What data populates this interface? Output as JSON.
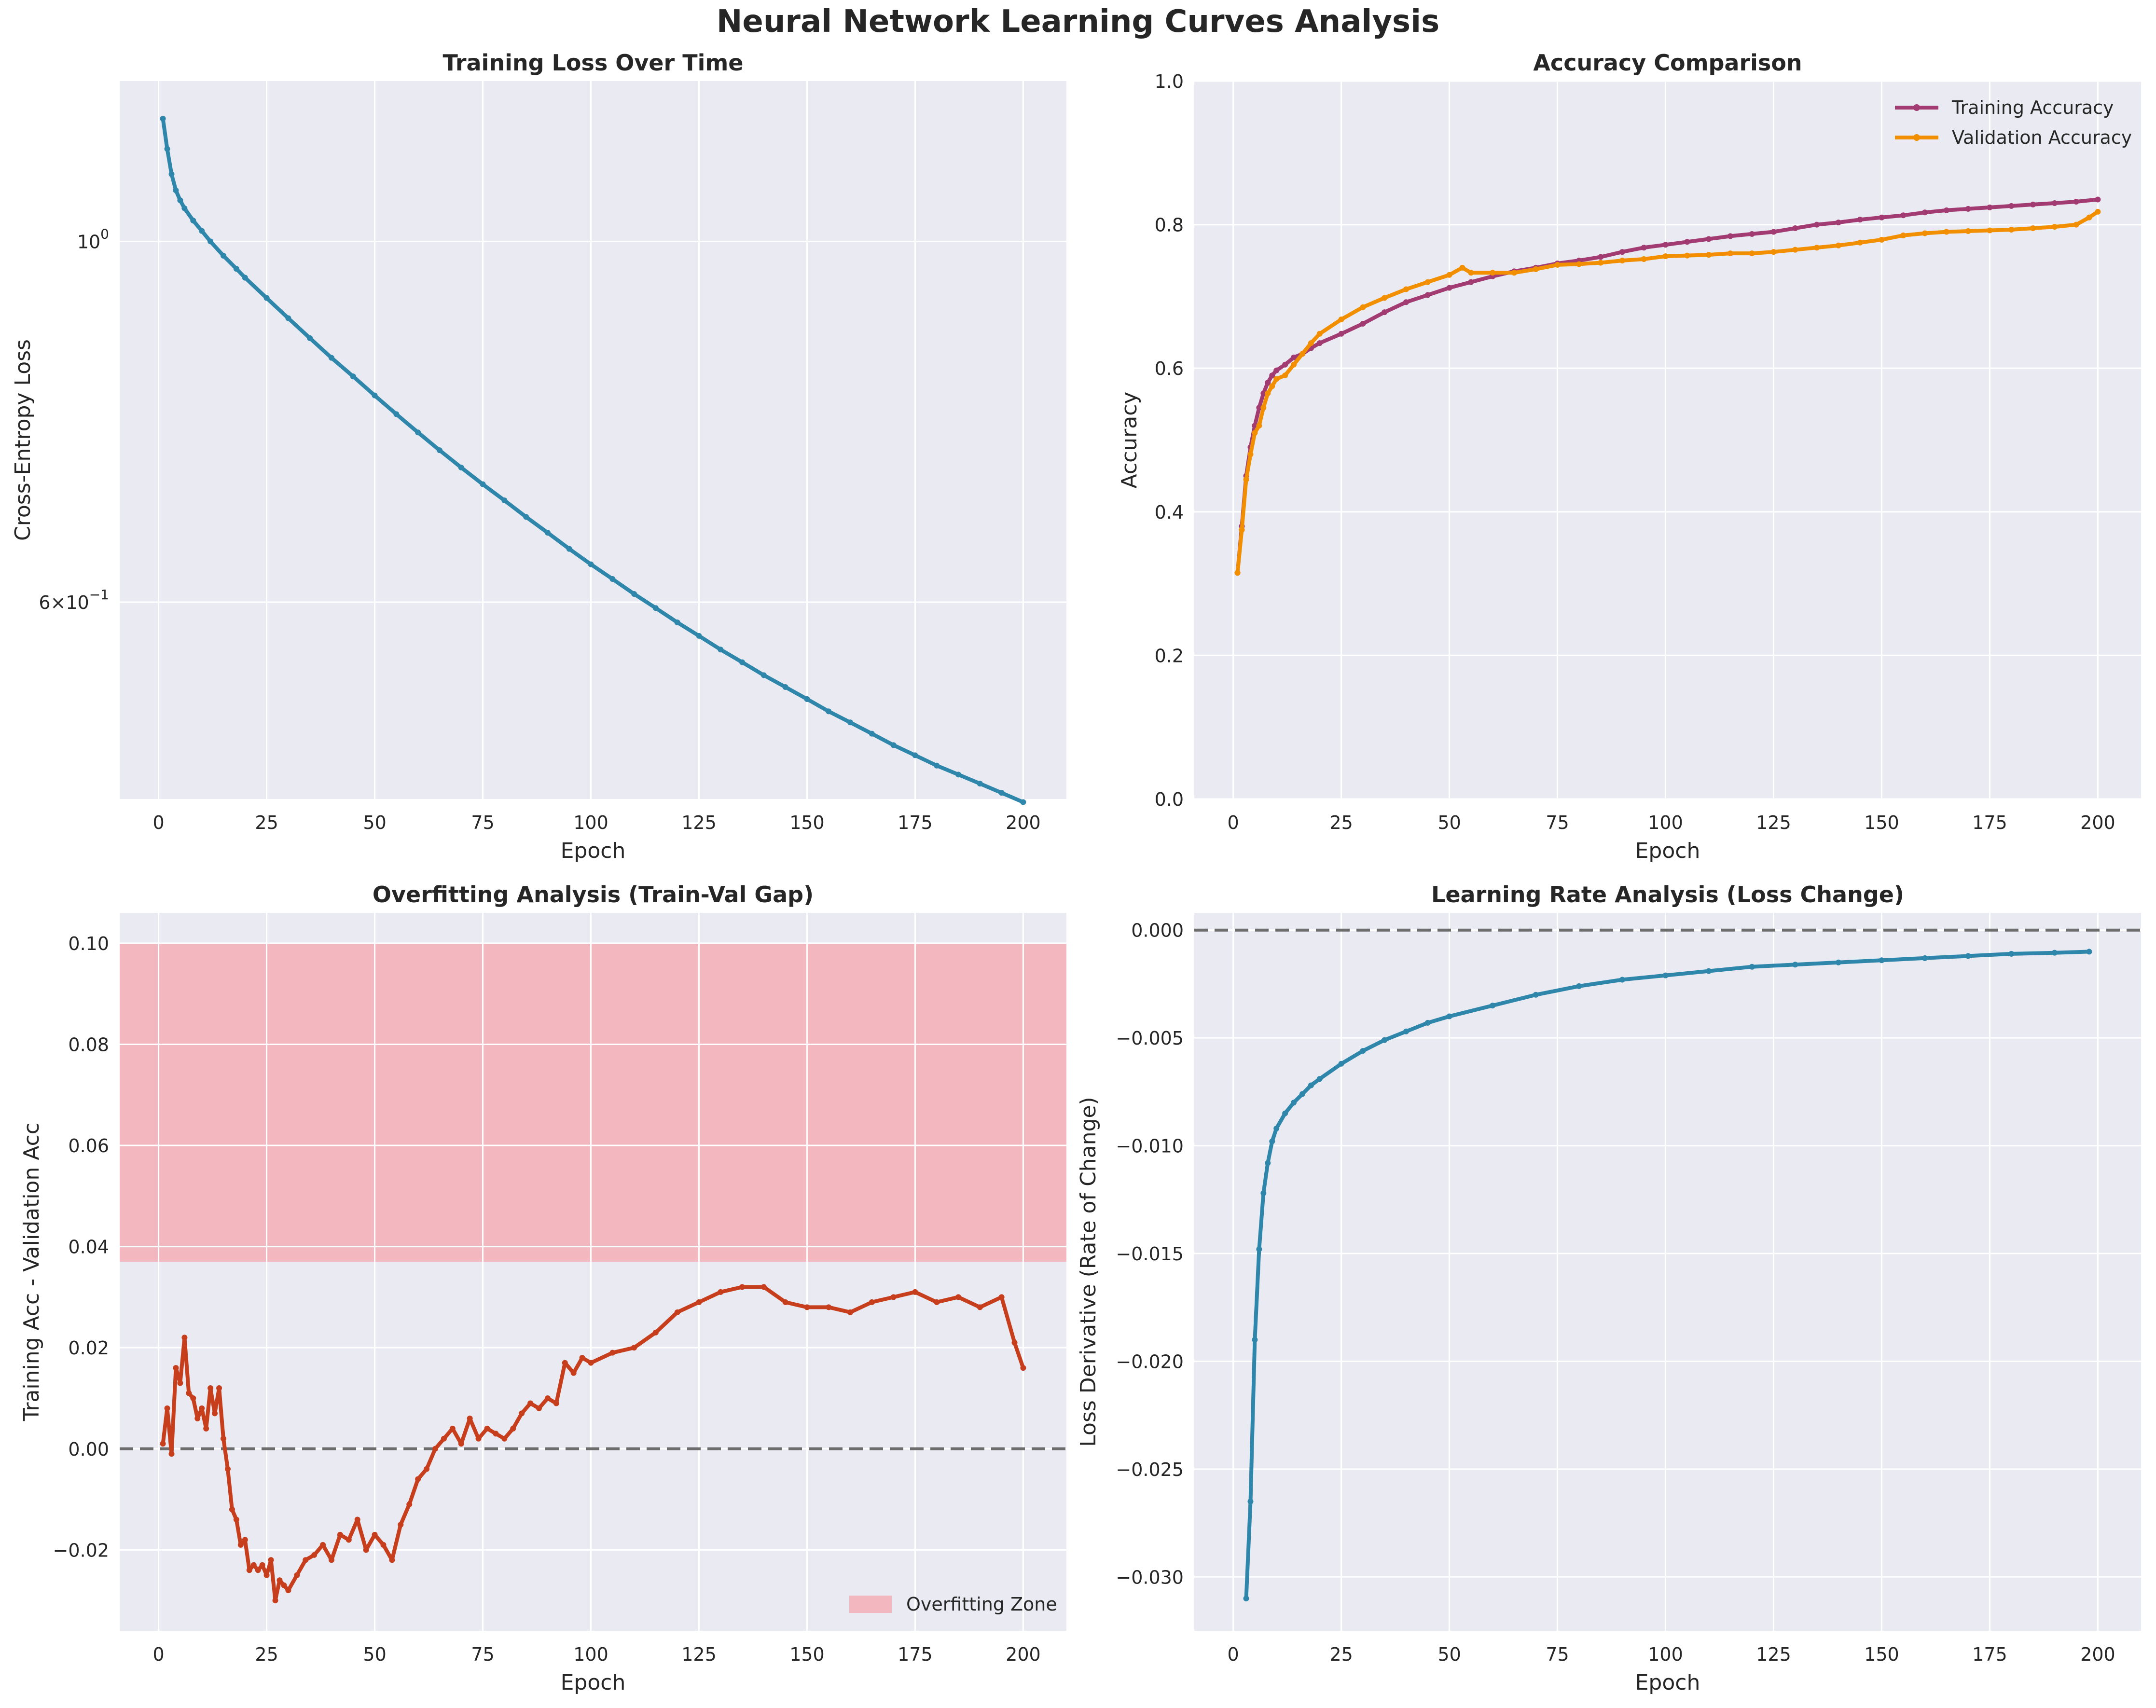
{
  "figure_title": "Neural Network Learning Curves Analysis",
  "colors": {
    "background": "#EAEAF2",
    "grid": "#FFFFFF",
    "loss": "#2E86AB",
    "train_acc": "#A23B72",
    "val_acc": "#F18F01",
    "gap": "#C73E1D",
    "zone": "#F4A6AE",
    "reference": "#555555"
  },
  "chart_data": [
    {
      "id": "loss",
      "type": "line",
      "title": "Training Loss Over Time",
      "xlabel": "Epoch",
      "ylabel": "Cross-Entropy Loss",
      "yscale": "log",
      "xlim": [
        -9,
        210
      ],
      "ylim": [
        0.454,
        1.255
      ],
      "xticks": [
        0,
        25,
        50,
        75,
        100,
        125,
        150,
        175,
        200
      ],
      "yticks": [
        {
          "value": 1.0,
          "label": "10^0"
        },
        {
          "value": 0.6,
          "label": "6×10^-1"
        }
      ],
      "grid": true,
      "series": [
        {
          "color_key": "loss",
          "marker": true,
          "x": [
            1,
            2,
            3,
            4,
            5,
            6,
            8,
            10,
            12,
            15,
            18,
            20,
            25,
            30,
            35,
            40,
            45,
            50,
            55,
            60,
            65,
            70,
            75,
            80,
            85,
            90,
            95,
            100,
            105,
            110,
            115,
            120,
            125,
            130,
            135,
            140,
            145,
            150,
            155,
            160,
            165,
            170,
            175,
            180,
            185,
            190,
            195,
            200
          ],
          "y": [
            1.19,
            1.14,
            1.1,
            1.075,
            1.06,
            1.048,
            1.03,
            1.015,
            1.0,
            0.98,
            0.962,
            0.95,
            0.923,
            0.897,
            0.872,
            0.848,
            0.826,
            0.804,
            0.783,
            0.763,
            0.744,
            0.726,
            0.709,
            0.693,
            0.677,
            0.662,
            0.647,
            0.633,
            0.62,
            0.607,
            0.595,
            0.583,
            0.572,
            0.561,
            0.551,
            0.541,
            0.532,
            0.523,
            0.514,
            0.506,
            0.498,
            0.49,
            0.483,
            0.476,
            0.47,
            0.464,
            0.458,
            0.452
          ]
        }
      ]
    },
    {
      "id": "accuracy",
      "type": "line",
      "title": "Accuracy Comparison",
      "xlabel": "Epoch",
      "ylabel": "Accuracy",
      "xlim": [
        -9,
        210
      ],
      "ylim": [
        0.0,
        1.0
      ],
      "xticks": [
        0,
        25,
        50,
        75,
        100,
        125,
        150,
        175,
        200
      ],
      "yticks": [
        0.0,
        0.2,
        0.4,
        0.6,
        0.8,
        1.0
      ],
      "legend": "top-right",
      "grid": true,
      "series": [
        {
          "name": "Training Accuracy",
          "color_key": "train_acc",
          "x": [
            1,
            2,
            3,
            4,
            5,
            6,
            7,
            8,
            9,
            10,
            12,
            14,
            16,
            18,
            20,
            25,
            30,
            35,
            40,
            45,
            50,
            55,
            60,
            65,
            70,
            75,
            80,
            85,
            90,
            95,
            100,
            105,
            110,
            115,
            120,
            125,
            130,
            135,
            140,
            145,
            150,
            155,
            160,
            165,
            170,
            175,
            180,
            185,
            190,
            195,
            200
          ],
          "y": [
            0.315,
            0.38,
            0.45,
            0.49,
            0.52,
            0.545,
            0.565,
            0.58,
            0.59,
            0.597,
            0.605,
            0.615,
            0.62,
            0.628,
            0.635,
            0.648,
            0.662,
            0.678,
            0.692,
            0.702,
            0.712,
            0.72,
            0.728,
            0.735,
            0.74,
            0.746,
            0.75,
            0.755,
            0.762,
            0.768,
            0.772,
            0.776,
            0.78,
            0.784,
            0.787,
            0.79,
            0.795,
            0.8,
            0.803,
            0.807,
            0.81,
            0.813,
            0.817,
            0.82,
            0.822,
            0.824,
            0.826,
            0.828,
            0.83,
            0.832,
            0.835
          ]
        },
        {
          "name": "Validation Accuracy",
          "color_key": "val_acc",
          "x": [
            1,
            2,
            3,
            4,
            5,
            6,
            7,
            8,
            9,
            10,
            12,
            14,
            16,
            18,
            20,
            25,
            30,
            35,
            40,
            45,
            50,
            53,
            55,
            60,
            65,
            70,
            75,
            80,
            85,
            90,
            95,
            100,
            105,
            110,
            115,
            120,
            125,
            130,
            135,
            140,
            145,
            150,
            155,
            160,
            165,
            170,
            175,
            180,
            185,
            190,
            195,
            198,
            200
          ],
          "y": [
            0.315,
            0.375,
            0.445,
            0.48,
            0.51,
            0.52,
            0.545,
            0.565,
            0.575,
            0.585,
            0.59,
            0.605,
            0.62,
            0.635,
            0.648,
            0.668,
            0.685,
            0.698,
            0.71,
            0.72,
            0.73,
            0.74,
            0.733,
            0.733,
            0.733,
            0.738,
            0.744,
            0.745,
            0.747,
            0.75,
            0.752,
            0.756,
            0.757,
            0.758,
            0.76,
            0.76,
            0.762,
            0.765,
            0.768,
            0.771,
            0.775,
            0.779,
            0.785,
            0.788,
            0.79,
            0.791,
            0.792,
            0.793,
            0.795,
            0.797,
            0.8,
            0.81,
            0.818
          ]
        }
      ]
    },
    {
      "id": "gap",
      "type": "line",
      "title": "Overfitting Analysis (Train-Val Gap)",
      "xlabel": "Epoch",
      "ylabel": "Training Acc - Validation Acc",
      "xlim": [
        -9,
        210
      ],
      "ylim": [
        -0.036,
        0.106
      ],
      "xticks": [
        0,
        25,
        50,
        75,
        100,
        125,
        150,
        175,
        200
      ],
      "yticks": [
        -0.02,
        0.0,
        0.02,
        0.04,
        0.06,
        0.08,
        0.1
      ],
      "ytick_labels": [
        "−0.02",
        "0.00",
        "0.02",
        "0.04",
        "0.06",
        "0.08",
        "0.10"
      ],
      "reference_line": 0.0,
      "zone": {
        "name": "Overfitting Zone",
        "from": 0.037,
        "to": 0.1
      },
      "legend": "bottom-right",
      "grid": true,
      "series": [
        {
          "color_key": "gap",
          "x": [
            1,
            2,
            3,
            4,
            5,
            6,
            7,
            8,
            9,
            10,
            11,
            12,
            13,
            14,
            15,
            16,
            17,
            18,
            19,
            20,
            21,
            22,
            23,
            24,
            25,
            26,
            27,
            28,
            29,
            30,
            32,
            34,
            36,
            38,
            40,
            42,
            44,
            46,
            48,
            50,
            52,
            54,
            56,
            58,
            60,
            62,
            64,
            66,
            68,
            70,
            72,
            74,
            76,
            78,
            80,
            82,
            84,
            86,
            88,
            90,
            92,
            94,
            96,
            98,
            100,
            105,
            110,
            115,
            120,
            125,
            130,
            135,
            140,
            145,
            150,
            155,
            160,
            165,
            170,
            175,
            180,
            185,
            190,
            195,
            198,
            200
          ],
          "y": [
            0.001,
            0.008,
            -0.001,
            0.016,
            0.013,
            0.022,
            0.011,
            0.01,
            0.006,
            0.008,
            0.004,
            0.012,
            0.007,
            0.012,
            0.002,
            -0.004,
            -0.012,
            -0.014,
            -0.019,
            -0.018,
            -0.024,
            -0.023,
            -0.024,
            -0.023,
            -0.025,
            -0.022,
            -0.03,
            -0.026,
            -0.027,
            -0.028,
            -0.025,
            -0.022,
            -0.021,
            -0.019,
            -0.022,
            -0.017,
            -0.018,
            -0.014,
            -0.02,
            -0.017,
            -0.019,
            -0.022,
            -0.015,
            -0.011,
            -0.006,
            -0.004,
            0.0,
            0.002,
            0.004,
            0.001,
            0.006,
            0.002,
            0.004,
            0.003,
            0.002,
            0.004,
            0.007,
            0.009,
            0.008,
            0.01,
            0.009,
            0.017,
            0.015,
            0.018,
            0.017,
            0.019,
            0.02,
            0.023,
            0.027,
            0.029,
            0.031,
            0.032,
            0.032,
            0.029,
            0.028,
            0.028,
            0.027,
            0.029,
            0.03,
            0.031,
            0.029,
            0.03,
            0.028,
            0.03,
            0.021,
            0.016
          ]
        }
      ]
    },
    {
      "id": "derivative",
      "type": "line",
      "title": "Learning Rate Analysis (Loss Change)",
      "xlabel": "Epoch",
      "ylabel": "Loss Derivative (Rate of Change)",
      "xlim": [
        -9,
        210
      ],
      "ylim": [
        -0.0325,
        0.0008
      ],
      "xticks": [
        0,
        25,
        50,
        75,
        100,
        125,
        150,
        175,
        200
      ],
      "yticks": [
        -0.03,
        -0.025,
        -0.02,
        -0.015,
        -0.01,
        -0.005,
        0.0
      ],
      "ytick_labels": [
        "−0.030",
        "−0.025",
        "−0.020",
        "−0.015",
        "−0.010",
        "−0.005",
        "0.000"
      ],
      "reference_line": 0.0,
      "grid": true,
      "series": [
        {
          "color_key": "loss",
          "marker": true,
          "x": [
            3,
            4,
            5,
            6,
            7,
            8,
            9,
            10,
            12,
            14,
            16,
            18,
            20,
            25,
            30,
            35,
            40,
            45,
            50,
            60,
            70,
            80,
            90,
            100,
            110,
            120,
            130,
            140,
            150,
            160,
            170,
            180,
            190,
            198
          ],
          "y": [
            -0.031,
            -0.0265,
            -0.019,
            -0.0148,
            -0.0122,
            -0.0108,
            -0.0098,
            -0.0092,
            -0.0085,
            -0.008,
            -0.0076,
            -0.0072,
            -0.0069,
            -0.0062,
            -0.0056,
            -0.0051,
            -0.0047,
            -0.0043,
            -0.004,
            -0.0035,
            -0.003,
            -0.0026,
            -0.0023,
            -0.0021,
            -0.0019,
            -0.0017,
            -0.0016,
            -0.0015,
            -0.0014,
            -0.0013,
            -0.0012,
            -0.0011,
            -0.00105,
            -0.001
          ]
        }
      ]
    }
  ]
}
